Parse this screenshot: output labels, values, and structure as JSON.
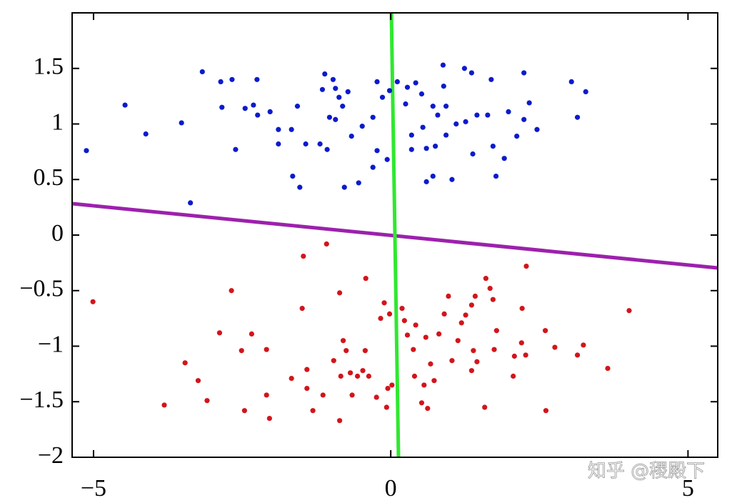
{
  "chart_data": {
    "type": "scatter",
    "xlim": [
      -5.36,
      5.5
    ],
    "ylim": [
      -2,
      2
    ],
    "xticks": [
      {
        "value": -5,
        "label": "−5"
      },
      0,
      5
    ],
    "yticks": [
      {
        "value": -2,
        "label": "−2"
      },
      {
        "value": -1.5,
        "label": "−1.5"
      },
      {
        "value": -1,
        "label": "−1"
      },
      {
        "value": -0.5,
        "label": "−0.5"
      },
      0,
      0.5,
      1,
      1.5
    ],
    "watermark": "知乎 @稷殿下",
    "series": [
      {
        "color": "#0b1bcc",
        "x": [
          -5.12,
          -4.47,
          -4.12,
          -3.52,
          -3.37,
          -3.17,
          -2.86,
          -2.67,
          -2.84,
          -2.61,
          -2.45,
          -2.31,
          -2.25,
          -2.24,
          -2.03,
          -1.89,
          -1.89,
          -1.67,
          -1.57,
          -1.65,
          -1.53,
          -1.43,
          -1.19,
          -1.11,
          -1.15,
          -0.97,
          -0.93,
          -0.87,
          -1.07,
          -1.03,
          -0.93,
          -0.81,
          -0.72,
          -0.78,
          -0.66,
          -0.54,
          -0.48,
          -0.3,
          -0.23,
          -0.23,
          -0.3,
          -0.14,
          -0.02,
          -0.06,
          0.11,
          0.28,
          0.25,
          0.42,
          0.35,
          0.35,
          0.52,
          0.54,
          0.6,
          0.6,
          0.71,
          0.71,
          0.79,
          0.75,
          0.88,
          0.89,
          0.93,
          0.93,
          1.03,
          1.1,
          1.24,
          1.36,
          1.26,
          1.38,
          1.45,
          1.69,
          1.72,
          1.63,
          1.77,
          1.91,
          1.98,
          2.12,
          2.24,
          2.33,
          2.24,
          2.46,
          3.04,
          3.28,
          3.14
        ],
        "values": [
          0.76,
          1.17,
          0.91,
          1.01,
          0.29,
          1.47,
          1.38,
          1.4,
          1.15,
          0.77,
          1.14,
          1.17,
          1.4,
          1.08,
          1.11,
          0.95,
          0.82,
          0.95,
          1.16,
          0.53,
          0.43,
          0.82,
          0.82,
          1.45,
          1.31,
          1.4,
          1.32,
          1.24,
          0.77,
          1.06,
          1.04,
          1.16,
          1.29,
          0.43,
          0.89,
          0.47,
          0.98,
          1.06,
          1.38,
          0.76,
          0.61,
          1.24,
          1.3,
          0.68,
          1.38,
          1.33,
          1.18,
          1.37,
          0.9,
          0.77,
          1.27,
          0.97,
          0.78,
          0.48,
          0.53,
          1.16,
          1.08,
          0.8,
          1.53,
          1.34,
          1.16,
          0.9,
          0.5,
          1.0,
          1.5,
          1.46,
          1.02,
          0.73,
          1.08,
          1.4,
          0.8,
          1.08,
          0.53,
          0.69,
          1.11,
          0.89,
          1.46,
          1.19,
          1.04,
          0.95,
          1.38,
          1.29,
          1.06
        ]
      },
      {
        "color": "#d2151b",
        "x": [
          -5.01,
          -3.81,
          -3.46,
          -3.24,
          -3.09,
          -2.88,
          -2.68,
          -2.51,
          -2.46,
          -2.34,
          -2.09,
          -2.09,
          -2.04,
          -1.67,
          -1.47,
          -1.49,
          -1.41,
          -1.41,
          -1.31,
          -1.14,
          -1.08,
          -0.96,
          -0.86,
          -0.86,
          -0.84,
          -0.8,
          -0.75,
          -0.68,
          -0.65,
          -0.56,
          -0.47,
          -0.42,
          -0.43,
          -0.37,
          -0.24,
          -0.17,
          -0.11,
          -0.05,
          -0.07,
          -0.02,
          0.02,
          0.19,
          0.23,
          0.28,
          0.38,
          0.42,
          0.4,
          0.52,
          0.56,
          0.62,
          0.59,
          0.67,
          0.73,
          0.81,
          0.9,
          0.97,
          1.03,
          1.13,
          1.19,
          1.26,
          1.36,
          1.42,
          1.36,
          1.39,
          1.45,
          1.58,
          1.6,
          1.67,
          1.72,
          1.78,
          1.74,
          2.06,
          2.08,
          2.21,
          2.2,
          2.27,
          2.28,
          2.6,
          2.61,
          2.76,
          3.14,
          3.24,
          3.65,
          4.01
        ],
        "values": [
          -0.6,
          -1.53,
          -1.15,
          -1.31,
          -1.49,
          -0.88,
          -0.5,
          -1.04,
          -1.58,
          -0.89,
          -1.03,
          -1.44,
          -1.65,
          -1.29,
          -0.19,
          -0.66,
          -1.21,
          -1.38,
          -1.58,
          -1.44,
          -0.08,
          -1.13,
          -0.52,
          -1.67,
          -1.27,
          -0.95,
          -1.04,
          -1.24,
          -1.44,
          -1.27,
          -1.22,
          -0.39,
          -1.04,
          -1.27,
          -1.46,
          -0.75,
          -0.61,
          -1.38,
          -1.55,
          -0.71,
          -1.35,
          -0.66,
          -0.77,
          -0.9,
          -1.03,
          -0.81,
          -1.27,
          -1.51,
          -1.35,
          -1.56,
          -0.92,
          -1.16,
          -1.31,
          -0.89,
          -0.71,
          -0.55,
          -1.13,
          -0.95,
          -0.79,
          -0.72,
          -0.63,
          -0.55,
          -1.22,
          -1.04,
          -1.14,
          -1.55,
          -0.39,
          -0.48,
          -0.58,
          -0.86,
          -1.03,
          -1.27,
          -1.09,
          -0.66,
          -0.97,
          -1.08,
          -0.28,
          -0.86,
          -1.58,
          -1.01,
          -1.08,
          -0.99,
          -1.2,
          -0.68
        ]
      }
    ],
    "lines": [
      {
        "color": "#9c21ac",
        "x": [
          -5.36,
          5.5
        ],
        "values": [
          0.283,
          -0.296
        ]
      },
      {
        "color": "#2fe82f",
        "x": [
          0.01,
          0.13
        ],
        "values": [
          2,
          -2
        ]
      }
    ]
  }
}
